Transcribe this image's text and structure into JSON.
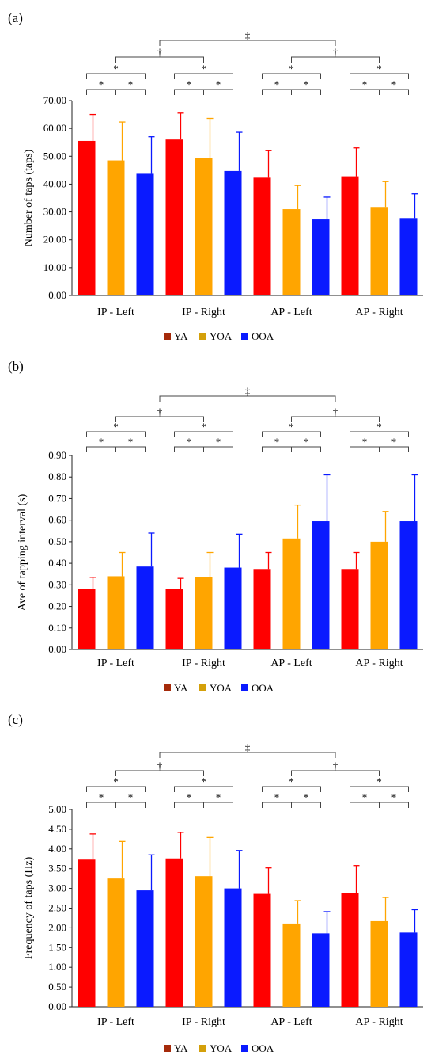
{
  "figure": {
    "categories": [
      "IP - Left",
      "IP - Right",
      "AP - Left",
      "AP - Right"
    ],
    "legend": [
      {
        "name": "YA",
        "color": "#ff0000",
        "swatch": "#a52a0a"
      },
      {
        "name": "YOA",
        "color": "#ffa500",
        "swatch": "#d4a00a"
      },
      {
        "name": "OOA",
        "color": "#0a1aff",
        "swatch": "#0a1aff"
      }
    ],
    "significance": {
      "star": "*",
      "dagger": "†",
      "double_dagger": "‡"
    }
  },
  "chart_data": [
    {
      "panel_label": "(a)",
      "type": "bar",
      "ylabel": "Number of taps (taps)",
      "ylim": [
        0,
        70
      ],
      "ytick_step": 10,
      "ytick_decimals": 2,
      "categories": [
        "IP - Left",
        "IP - Right",
        "AP - Left",
        "AP - Right"
      ],
      "series": [
        {
          "name": "YA",
          "values": [
            55.5,
            56.0,
            42.3,
            42.8
          ],
          "errors": [
            9.5,
            9.5,
            9.7,
            10.2
          ]
        },
        {
          "name": "YOA",
          "values": [
            48.5,
            49.3,
            31.0,
            31.8
          ],
          "errors": [
            13.8,
            14.3,
            8.5,
            9.1
          ]
        },
        {
          "name": "OOA",
          "values": [
            43.7,
            44.7,
            27.3,
            27.8
          ],
          "errors": [
            13.3,
            13.9,
            8.0,
            8.7
          ]
        }
      ]
    },
    {
      "panel_label": "(b)",
      "type": "bar",
      "ylabel": "Ave of tapping interval (s)",
      "ylim": [
        0,
        0.9
      ],
      "ytick_step": 0.1,
      "ytick_decimals": 2,
      "categories": [
        "IP - Left",
        "IP - Right",
        "AP - Left",
        "AP - Right"
      ],
      "series": [
        {
          "name": "YA",
          "values": [
            0.28,
            0.28,
            0.37,
            0.37
          ],
          "errors": [
            0.055,
            0.05,
            0.08,
            0.08
          ]
        },
        {
          "name": "YOA",
          "values": [
            0.34,
            0.335,
            0.515,
            0.5
          ],
          "errors": [
            0.11,
            0.115,
            0.155,
            0.14
          ]
        },
        {
          "name": "OOA",
          "values": [
            0.385,
            0.38,
            0.595,
            0.595
          ],
          "errors": [
            0.155,
            0.155,
            0.215,
            0.215
          ]
        }
      ]
    },
    {
      "panel_label": "(c)",
      "type": "bar",
      "ylabel": "Frequency of taps (Hz)",
      "ylim": [
        0,
        5
      ],
      "ytick_step": 0.5,
      "ytick_decimals": 2,
      "categories": [
        "IP - Left",
        "IP - Right",
        "AP - Left",
        "AP - Right"
      ],
      "series": [
        {
          "name": "YA",
          "values": [
            3.73,
            3.76,
            2.86,
            2.88
          ],
          "errors": [
            0.65,
            0.66,
            0.66,
            0.7
          ]
        },
        {
          "name": "YOA",
          "values": [
            3.25,
            3.31,
            2.11,
            2.17
          ],
          "errors": [
            0.94,
            0.98,
            0.58,
            0.6
          ]
        },
        {
          "name": "OOA",
          "values": [
            2.95,
            3.0,
            1.86,
            1.88
          ],
          "errors": [
            0.9,
            0.96,
            0.55,
            0.58
          ]
        }
      ]
    }
  ]
}
